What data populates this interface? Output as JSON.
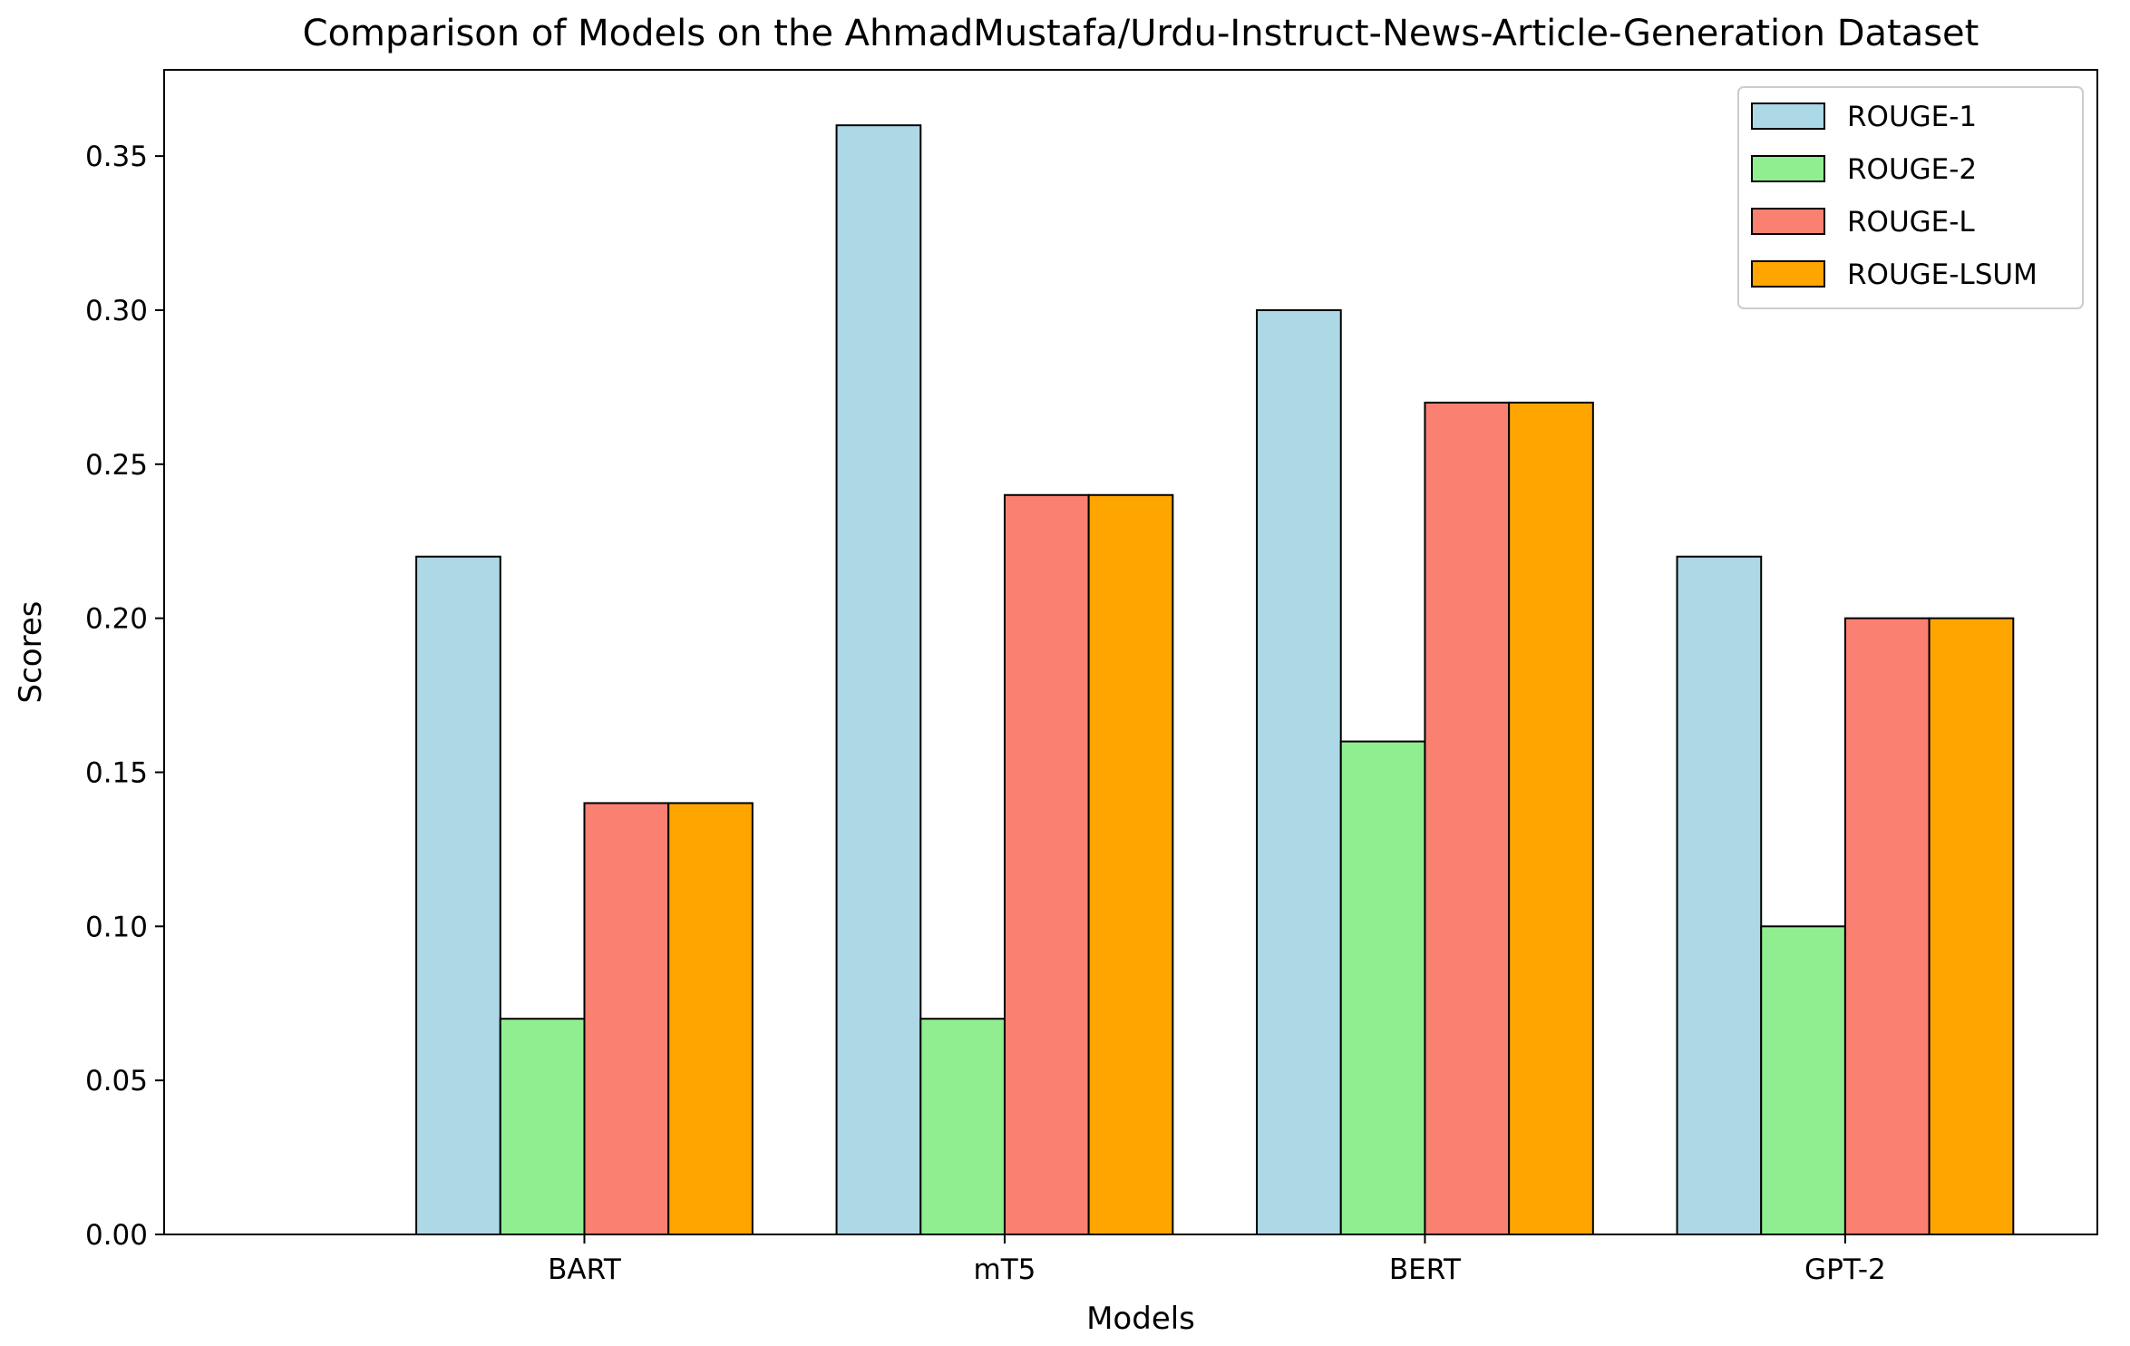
{
  "chart_data": {
    "type": "bar",
    "title": "Comparison of Models on the AhmadMustafa/Urdu-Instruct-News-Article-Generation Dataset",
    "xlabel": "Models",
    "ylabel": "Scores",
    "categories": [
      "BART",
      "mT5",
      "BERT",
      "GPT-2"
    ],
    "series": [
      {
        "name": "ROUGE-1",
        "color": "#add8e6",
        "values": [
          0.22,
          0.36,
          0.3,
          0.22
        ]
      },
      {
        "name": "ROUGE-2",
        "color": "#90ee90",
        "values": [
          0.07,
          0.07,
          0.16,
          0.1
        ]
      },
      {
        "name": "ROUGE-L",
        "color": "#fa8072",
        "values": [
          0.14,
          0.24,
          0.27,
          0.2
        ]
      },
      {
        "name": "ROUGE-LSUM",
        "color": "#ffa500",
        "values": [
          0.14,
          0.24,
          0.27,
          0.2
        ]
      }
    ],
    "ylim": [
      0,
      0.378
    ],
    "yticks": [
      "0.00",
      "0.05",
      "0.10",
      "0.15",
      "0.20",
      "0.25",
      "0.30",
      "0.35"
    ],
    "grid": false,
    "legend_position": "top-right",
    "bar_edge_color": "#000000"
  }
}
